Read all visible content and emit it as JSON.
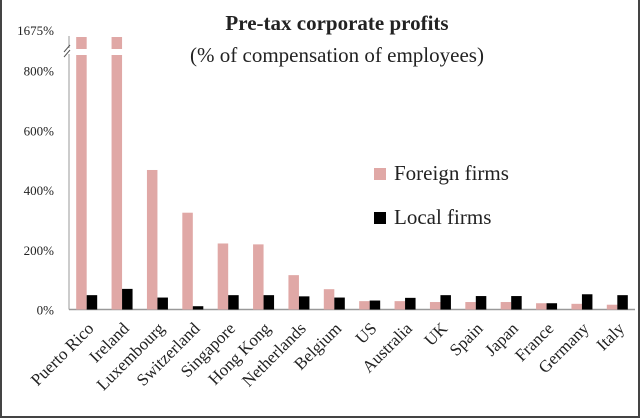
{
  "chart_data": {
    "type": "bar",
    "title": "Pre-tax corporate profits",
    "subtitle": "(% of compensation of employees)",
    "categories": [
      "Puerto Rico",
      "Ireland",
      "Luxembourg",
      "Switzerland",
      "Singapore",
      "Hong Kong",
      "Netherlands",
      "Belgium",
      "US",
      "Australia",
      "UK",
      "Spain",
      "Japan",
      "France",
      "Germany",
      "Italy"
    ],
    "series": [
      {
        "name": "Foreign firms",
        "color": "#e0a8a6",
        "values": [
          1675,
          811,
          467,
          324,
          221,
          218,
          115,
          68,
          28,
          28,
          25,
          25,
          25,
          21,
          19,
          16
        ]
      },
      {
        "name": "Local firms",
        "color": "#000000",
        "values": [
          48,
          69,
          40,
          11,
          48,
          48,
          44,
          40,
          30,
          39,
          48,
          45,
          45,
          21,
          51,
          48
        ]
      }
    ],
    "yticks": [
      "0%",
      "200%",
      "400%",
      "600%",
      "800%"
    ],
    "ytick_values": [
      0,
      200,
      400,
      600,
      800
    ],
    "ybreak_label": "1675%",
    "ylim": [
      0,
      800
    ],
    "axis_break": true,
    "grid": false,
    "legend_placement": "right-middle"
  }
}
